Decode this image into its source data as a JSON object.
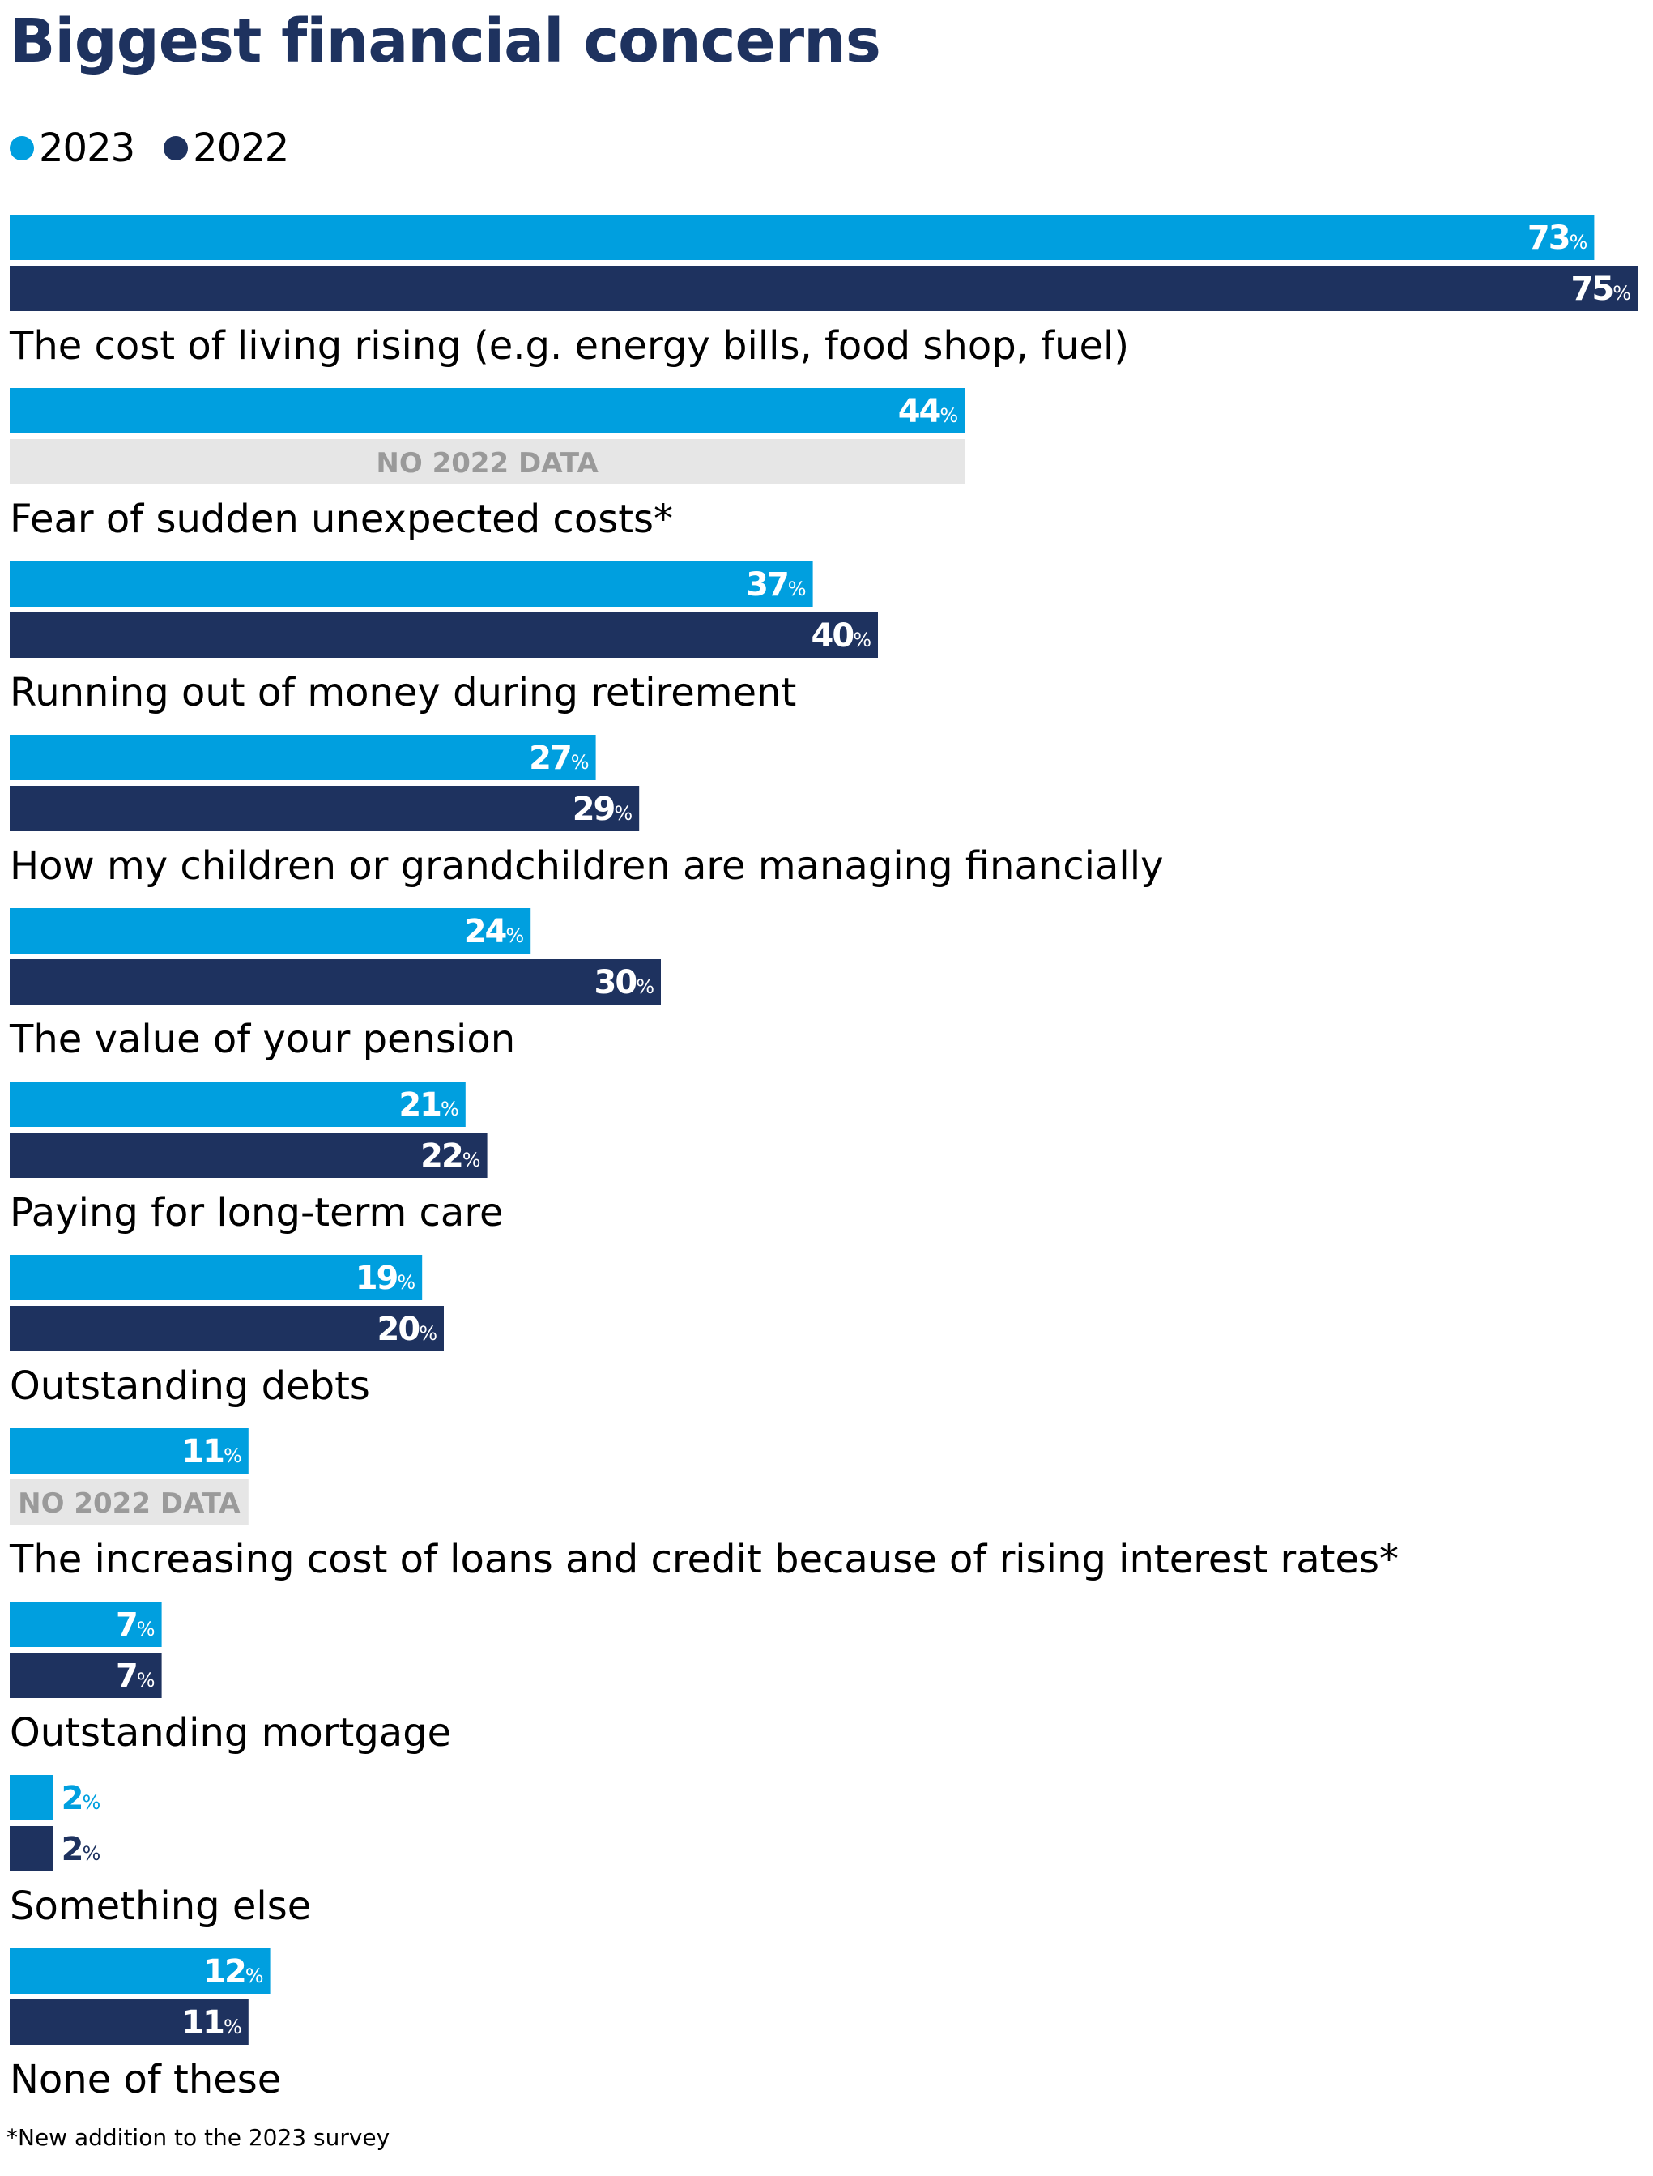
{
  "colors": {
    "series_2023": "#009fdf",
    "series_2022": "#1e325f",
    "no_data_fill": "#e6e6e6",
    "no_data_text": "#9a9a9a",
    "title": "#1e325f"
  },
  "title": "Biggest financial concerns",
  "footnote": "*New addition to the 2023 survey",
  "legend": [
    {
      "label": "2023",
      "color": "#009fdf"
    },
    {
      "label": "2022",
      "color": "#1e325f"
    }
  ],
  "no_data_label": "NO 2022 DATA",
  "unit_suffix": "%",
  "chart_data": {
    "type": "bar",
    "orientation": "horizontal",
    "title": "Biggest financial concerns",
    "categories": [
      "The cost of living rising (e.g. energy bills, food shop, fuel)",
      "Fear of sudden unexpected costs*",
      "Running out of money during retirement",
      "How my children or grandchildren are managing financially",
      "The value of your pension",
      "Paying for long-term care",
      "Outstanding debts",
      "The increasing cost of loans and credit because of rising interest rates*",
      "Outstanding mortgage",
      "Something else",
      "None of these"
    ],
    "series": [
      {
        "name": "2023",
        "values": [
          73,
          44,
          37,
          27,
          24,
          21,
          19,
          11,
          7,
          2,
          12
        ]
      },
      {
        "name": "2022",
        "values": [
          75,
          null,
          40,
          29,
          30,
          22,
          20,
          null,
          7,
          2,
          11
        ]
      }
    ],
    "xlim": [
      0,
      75
    ],
    "grid": false,
    "legend_position": "top-left"
  }
}
